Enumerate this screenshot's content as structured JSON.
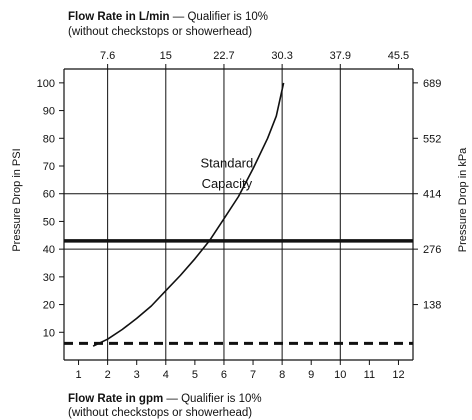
{
  "chart_data": {
    "type": "line",
    "top_caption": {
      "bold": "Flow Rate in L/min",
      "rest": " — Qualifier is 10%",
      "line2": "(without checkstops or showerhead)"
    },
    "bottom_caption": {
      "bold": "Flow Rate in gpm",
      "rest": " — Qualifier is 10%",
      "line2": "(without checkstops or showerhead)"
    },
    "ylabel": "Pressure Drop in PSI",
    "ylabel_right": "Pressure Drop in kPa",
    "x_bottom": {
      "unit": "gpm",
      "range": [
        0.5,
        12.5
      ],
      "ticks": [
        1,
        2,
        3,
        4,
        5,
        6,
        7,
        8,
        9,
        10,
        11,
        12
      ],
      "tick_labels": [
        "1",
        "2",
        "3",
        "4",
        "5",
        "6",
        "7",
        "8",
        "9",
        "10",
        "11",
        "12"
      ]
    },
    "x_top": {
      "unit": "L/min",
      "ticks_gpm": [
        2,
        4,
        6,
        8,
        10,
        12
      ],
      "tick_labels": [
        "7.6",
        "15",
        "22.7",
        "30.3",
        "37.9",
        "45.5"
      ]
    },
    "y_left": {
      "unit": "PSI",
      "range": [
        0,
        105
      ],
      "ticks": [
        10,
        20,
        30,
        40,
        50,
        60,
        70,
        80,
        90,
        100
      ],
      "tick_labels": [
        "10",
        "20",
        "30",
        "40",
        "50",
        "60",
        "70",
        "80",
        "90",
        "100"
      ]
    },
    "y_right": {
      "unit": "kPa",
      "ticks_psi": [
        20,
        40,
        60,
        80,
        100
      ],
      "tick_labels": [
        "138",
        "276",
        "414",
        "552",
        "689"
      ]
    },
    "grid": {
      "vertical_at_gpm": [
        2,
        4,
        6,
        8,
        10
      ],
      "horizontal_at_psi": [
        40,
        60
      ]
    },
    "series": [
      {
        "name": "Standard Capacity",
        "style": "solid",
        "x": [
          1.5,
          2.0,
          2.5,
          3.0,
          3.5,
          4.0,
          4.5,
          5.0,
          5.5,
          6.0,
          6.5,
          7.0,
          7.5,
          7.8,
          8.05
        ],
        "y": [
          5,
          7.5,
          11,
          15,
          19.5,
          25,
          30.5,
          36.5,
          43,
          51,
          59,
          69,
          80,
          88,
          100
        ]
      }
    ],
    "reference_lines": [
      {
        "kind": "solid-thick",
        "y": 43
      },
      {
        "kind": "dashed",
        "y": 6
      }
    ],
    "annotations": [
      {
        "text": "Standard",
        "x": 6.1,
        "y": 69.5
      },
      {
        "text": "Capacity",
        "x": 6.1,
        "y": 62
      }
    ]
  }
}
